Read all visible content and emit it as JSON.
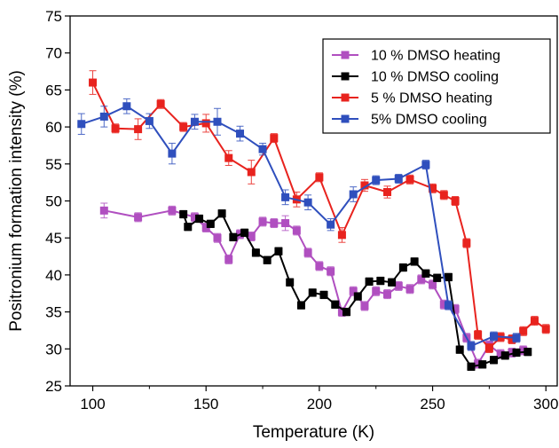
{
  "chart_data": {
    "type": "line",
    "title": "",
    "xlabel": "Temperature (K)",
    "ylabel": "Positronium formation intensity (%)",
    "xlim": [
      90,
      305
    ],
    "ylim": [
      25,
      75
    ],
    "x_ticks": [
      100,
      150,
      200,
      250,
      300
    ],
    "y_ticks": [
      25,
      30,
      35,
      40,
      45,
      50,
      55,
      60,
      65,
      70,
      75
    ],
    "legend_position": "top-right",
    "series": [
      {
        "name": "10 % DMSO heating",
        "color": "#b04fc0",
        "x": [
          105,
          120,
          135,
          145,
          150,
          155,
          160,
          165,
          170,
          175,
          180,
          185,
          190,
          195,
          200,
          205,
          210,
          215,
          220,
          225,
          230,
          235,
          240,
          245,
          250,
          255,
          260,
          265,
          270,
          275,
          280,
          285,
          290
        ],
        "y": [
          48.7,
          47.8,
          48.7,
          47.8,
          46.4,
          45.0,
          42.1,
          45.5,
          45.2,
          47.2,
          47.0,
          47.0,
          46.0,
          43.0,
          41.2,
          40.5,
          35.0,
          37.8,
          35.8,
          37.8,
          37.4,
          38.5,
          38.1,
          39.4,
          38.7,
          36.0,
          35.4,
          31.5,
          28.0,
          30.5,
          29.3,
          29.5,
          29.8
        ],
        "errors": [
          1.0,
          0.6,
          0.6,
          0.6,
          0.6,
          0.6,
          0.6,
          0.6,
          0.6,
          0.6,
          0.6,
          1.0,
          0.6,
          0.6,
          0.6,
          0.6,
          0.6,
          0.6,
          0.6,
          0.6,
          0.6,
          0.6,
          0.6,
          0.6,
          0.6,
          0.6,
          0.6,
          0.6,
          0.6,
          0.6,
          0.6,
          0.6,
          0.6
        ]
      },
      {
        "name": "10 % DMSO cooling",
        "color": "#000000",
        "x": [
          140,
          142,
          147,
          152,
          157,
          162,
          167,
          172,
          177,
          182,
          187,
          192,
          197,
          202,
          207,
          212,
          217,
          222,
          227,
          232,
          237,
          242,
          247,
          252,
          257,
          262,
          267,
          272,
          277,
          282,
          287,
          292
        ],
        "y": [
          48.2,
          46.5,
          47.6,
          46.9,
          48.3,
          45.1,
          45.7,
          43.0,
          42.0,
          43.2,
          39.0,
          35.9,
          37.6,
          37.3,
          36.0,
          35.0,
          37.1,
          39.1,
          39.2,
          39.0,
          41.0,
          41.8,
          40.2,
          39.6,
          39.7,
          29.9,
          27.6,
          27.9,
          28.5,
          29.1,
          29.5,
          29.6
        ],
        "errors": [
          0.5,
          0.5,
          0.5,
          0.5,
          0.5,
          0.5,
          0.5,
          0.5,
          0.5,
          0.5,
          0.5,
          0.5,
          0.5,
          0.5,
          0.5,
          0.5,
          0.5,
          0.5,
          0.5,
          0.5,
          0.5,
          0.5,
          0.5,
          0.5,
          0.5,
          0.5,
          0.5,
          0.5,
          0.5,
          0.5,
          0.5,
          0.5
        ]
      },
      {
        "name": "5 % DMSO heating",
        "color": "#e8231e",
        "x": [
          100,
          110,
          120,
          130,
          140,
          150,
          160,
          170,
          180,
          190,
          200,
          210,
          220,
          230,
          240,
          250,
          255,
          260,
          265,
          270,
          275,
          280,
          285,
          290,
          295,
          300
        ],
        "y": [
          66.0,
          59.8,
          59.7,
          63.1,
          60.0,
          60.5,
          55.8,
          53.9,
          58.5,
          50.2,
          53.2,
          45.4,
          52.1,
          51.2,
          52.9,
          51.7,
          50.8,
          50.0,
          44.3,
          31.9,
          30.1,
          31.6,
          31.3,
          32.4,
          33.8,
          32.7
        ],
        "errors": [
          1.6,
          0.6,
          1.4,
          0.6,
          0.6,
          1.2,
          1.0,
          1.6,
          0.6,
          1.0,
          0.6,
          1.0,
          0.8,
          0.8,
          0.6,
          0.6,
          0.6,
          0.6,
          0.6,
          0.6,
          0.6,
          0.6,
          0.6,
          0.6,
          0.6,
          0.6
        ]
      },
      {
        "name": "5% DMSO cooling",
        "color": "#2f4fbd",
        "x": [
          95,
          105,
          115,
          125,
          135,
          145,
          155,
          165,
          175,
          185,
          195,
          205,
          215,
          225,
          235,
          247,
          257,
          267,
          277,
          287
        ],
        "y": [
          60.4,
          61.4,
          62.8,
          60.8,
          56.4,
          60.7,
          60.7,
          59.1,
          57.0,
          50.5,
          49.8,
          46.8,
          50.9,
          52.8,
          53.0,
          54.9,
          35.9,
          30.4,
          31.7,
          31.5
        ],
        "errors": [
          1.4,
          1.4,
          1.0,
          1.0,
          1.4,
          1.0,
          1.8,
          1.0,
          0.8,
          1.0,
          1.0,
          0.8,
          1.0,
          0.6,
          0.6,
          0.6,
          0.6,
          0.6,
          0.6,
          0.6
        ]
      }
    ]
  }
}
